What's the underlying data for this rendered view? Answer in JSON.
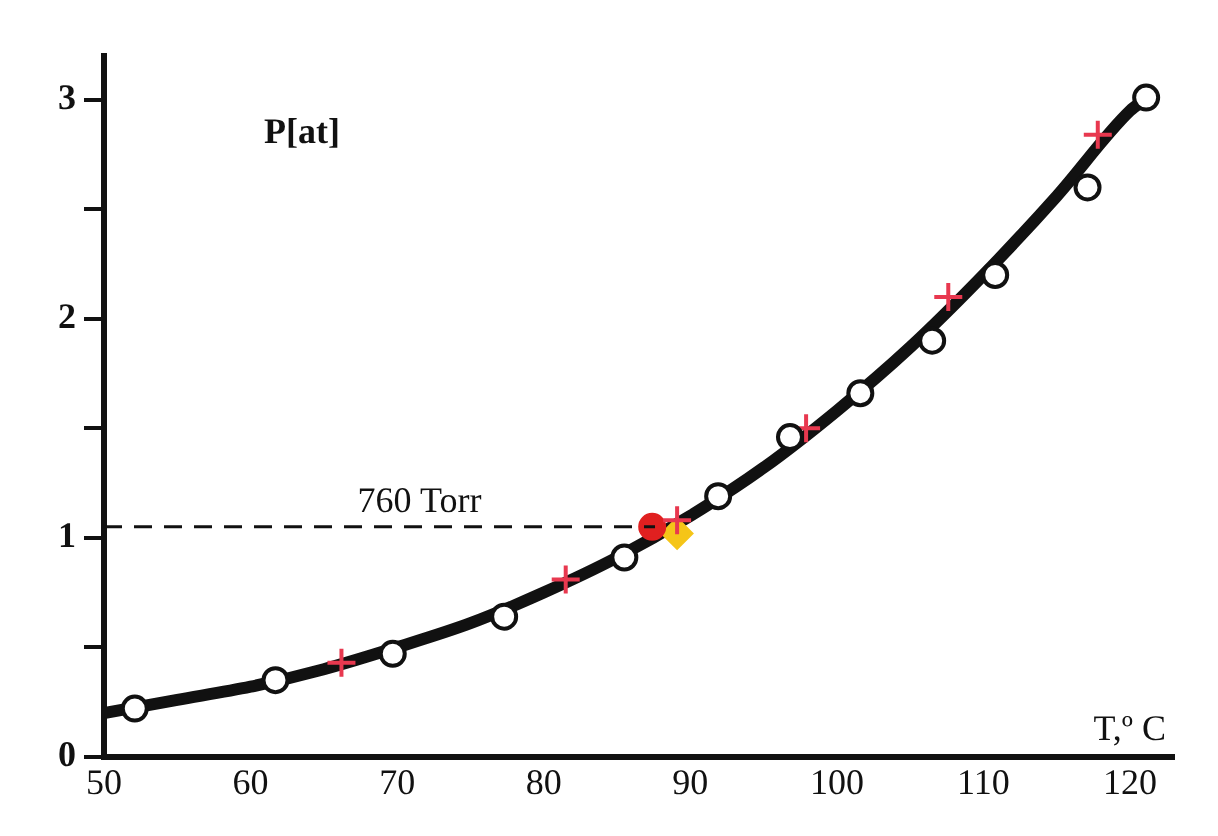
{
  "chart_data": {
    "type": "scatter",
    "xlabel": "T,º C",
    "ylabel": "P[at]",
    "xlim": [
      50,
      123
    ],
    "xticks": [
      50,
      60,
      70,
      80,
      90,
      100,
      110,
      120
    ],
    "ylim": [
      0,
      3.2
    ],
    "yticks": [
      0,
      {
        "value": 0.5,
        "label": null
      },
      1,
      {
        "value": 1.5,
        "label": null
      },
      2,
      {
        "value": 2.5,
        "label": null
      },
      3
    ],
    "grid": false,
    "legend": false,
    "series": [
      {
        "type": "line",
        "color": "#111111",
        "marker": "none",
        "x": [
          50,
          55,
          60,
          65,
          70,
          75,
          80,
          85,
          90,
          95,
          100,
          105,
          110,
          115,
          120,
          121
        ],
        "values": [
          0.2,
          0.26,
          0.32,
          0.4,
          0.5,
          0.61,
          0.75,
          0.91,
          1.1,
          1.32,
          1.58,
          1.87,
          2.2,
          2.56,
          2.95,
          3.0
        ]
      },
      {
        "color": "#111111",
        "marker": "circle",
        "x": [
          52.1,
          61.7,
          69.7,
          77.3,
          85.5,
          91.9,
          96.8,
          101.6,
          106.5,
          110.8,
          117.1,
          121.1
        ],
        "values": [
          0.22,
          0.35,
          0.47,
          0.64,
          0.91,
          1.19,
          1.46,
          1.66,
          1.9,
          2.2,
          2.6,
          3.01
        ]
      },
      {
        "color": "#e8384f",
        "marker": "cross",
        "x": [
          66.2,
          81.5,
          89.1,
          97.9,
          107.6,
          117.8
        ],
        "values": [
          0.43,
          0.81,
          1.08,
          1.5,
          2.1,
          2.84
        ]
      },
      {
        "color": "#e02020",
        "marker": "circle",
        "x": [
          87.4
        ],
        "values": [
          1.05
        ]
      },
      {
        "color": "#f5c518",
        "marker": "diamond",
        "x": [
          89.1
        ],
        "values": [
          1.02
        ]
      }
    ],
    "ref_lines": [
      {
        "axis": "y",
        "value": 1.05,
        "label": "760 Torr",
        "line_style": "dashed"
      }
    ]
  }
}
